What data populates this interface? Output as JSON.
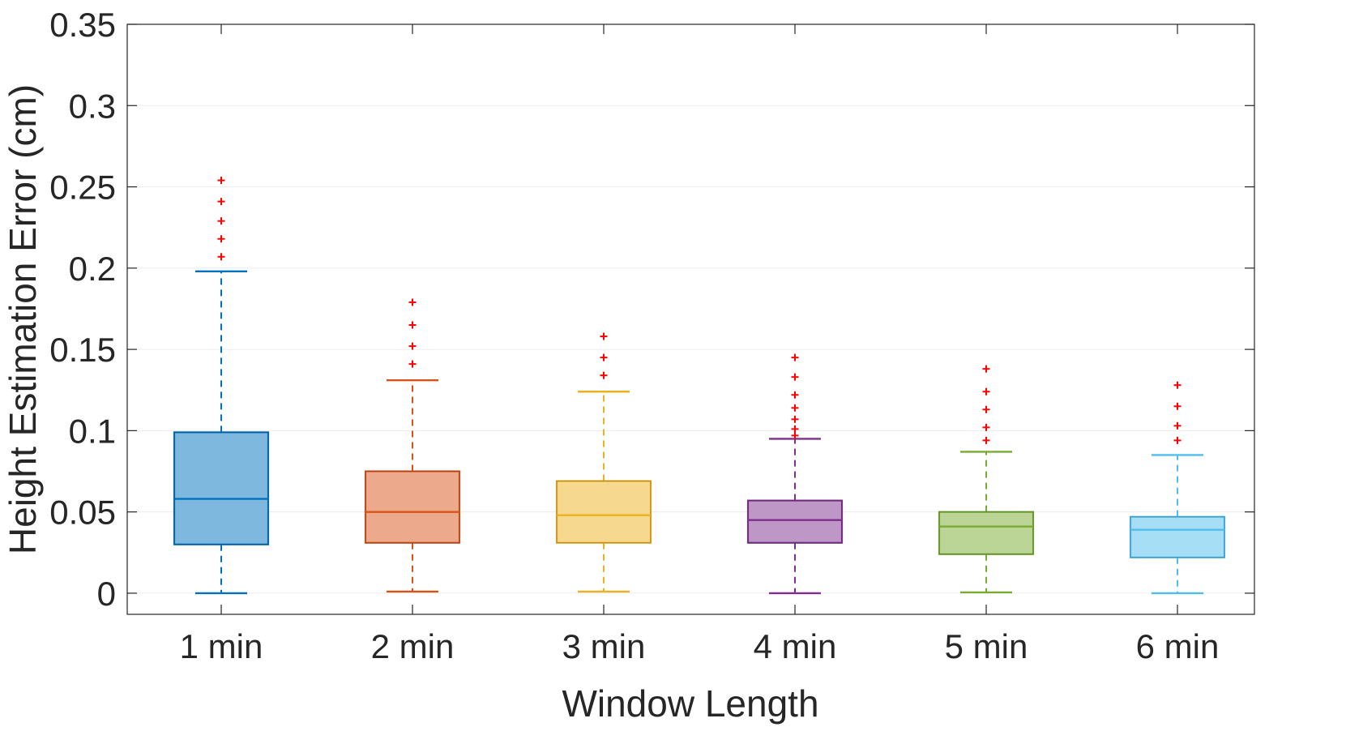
{
  "chart_data": {
    "type": "box",
    "xlabel": "Window Length",
    "ylabel": "Height Estimation Error (cm)",
    "ylim": [
      -0.013,
      0.35
    ],
    "yticks": [
      0,
      0.05,
      0.1,
      0.15,
      0.2,
      0.25,
      0.3,
      0.35
    ],
    "ytick_labels": [
      "0",
      "0.05",
      "0.1",
      "0.15",
      "0.2",
      "0.25",
      "0.3",
      "0.35"
    ],
    "grid": true,
    "categories": [
      "1 min",
      "2 min",
      "3 min",
      "4 min",
      "5 min",
      "6 min"
    ],
    "boxes": [
      {
        "label": "1 min",
        "whisker_low": 0.0,
        "q1": 0.03,
        "median": 0.058,
        "q3": 0.099,
        "whisker_high": 0.198,
        "outliers": [
          0.207,
          0.218,
          0.229,
          0.241,
          0.254
        ],
        "color": "#0072BD",
        "fill": "#7FB8DE"
      },
      {
        "label": "2 min",
        "whisker_low": 0.001,
        "q1": 0.031,
        "median": 0.05,
        "q3": 0.075,
        "whisker_high": 0.131,
        "outliers": [
          0.141,
          0.152,
          0.165,
          0.179
        ],
        "color": "#D95319",
        "fill": "#ECA98C"
      },
      {
        "label": "3 min",
        "whisker_low": 0.001,
        "q1": 0.031,
        "median": 0.048,
        "q3": 0.069,
        "whisker_high": 0.124,
        "outliers": [
          0.134,
          0.145,
          0.158
        ],
        "color": "#EDB120",
        "fill": "#F6D88F"
      },
      {
        "label": "4 min",
        "whisker_low": 0.0,
        "q1": 0.031,
        "median": 0.045,
        "q3": 0.057,
        "whisker_high": 0.095,
        "outliers": [
          0.097,
          0.101,
          0.107,
          0.114,
          0.122,
          0.133,
          0.145
        ],
        "color": "#7E2F8E",
        "fill": "#BE97C6"
      },
      {
        "label": "5 min",
        "whisker_low": 0.0005,
        "q1": 0.024,
        "median": 0.041,
        "q3": 0.05,
        "whisker_high": 0.087,
        "outliers": [
          0.094,
          0.102,
          0.113,
          0.124,
          0.138
        ],
        "color": "#77AC30",
        "fill": "#BBD597"
      },
      {
        "label": "6 min",
        "whisker_low": 0.0,
        "q1": 0.022,
        "median": 0.039,
        "q3": 0.047,
        "whisker_high": 0.085,
        "outliers": [
          0.094,
          0.103,
          0.115,
          0.128
        ],
        "color": "#4DBEEE",
        "fill": "#A6DEF6"
      }
    ],
    "outlier_color": "#FF0000"
  }
}
